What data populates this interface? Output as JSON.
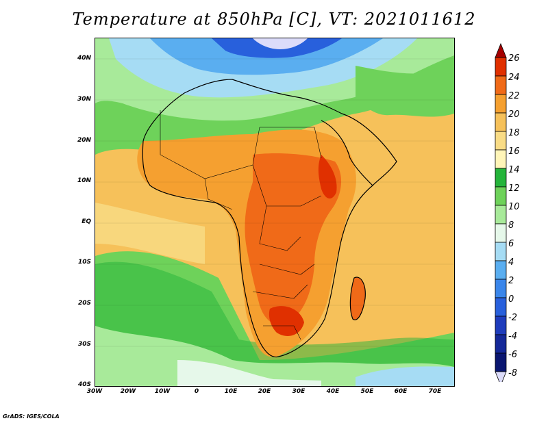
{
  "title": "Temperature at 850hPa [C], VT: 2021011612",
  "credit": "GrADS: IGES/COLA",
  "axes": {
    "lat_labels": [
      "40N",
      "30N",
      "20N",
      "10N",
      "EQ",
      "10S",
      "20S",
      "30S",
      "40S"
    ],
    "lon_labels": [
      "30W",
      "20W",
      "10W",
      "0",
      "10E",
      "20E",
      "30E",
      "40E",
      "50E",
      "60E",
      "70E"
    ]
  },
  "colorbar": {
    "labels": [
      "26",
      "24",
      "22",
      "20",
      "18",
      "16",
      "14",
      "12",
      "10",
      "8",
      "6",
      "4",
      "2",
      "0",
      "-2",
      "-4",
      "-6",
      "-8"
    ],
    "colors": [
      "#a50000",
      "#e03000",
      "#f06a18",
      "#f5a030",
      "#f6c15a",
      "#f9dc86",
      "#fff5b8",
      "#24b43a",
      "#6ed25a",
      "#a8ea9a",
      "#e6f8ea",
      "#a6dcf4",
      "#5aaef0",
      "#3a86ea",
      "#2860dc",
      "#1e3cbc",
      "#142898",
      "#0a1670",
      "#dcdcfa"
    ]
  }
}
